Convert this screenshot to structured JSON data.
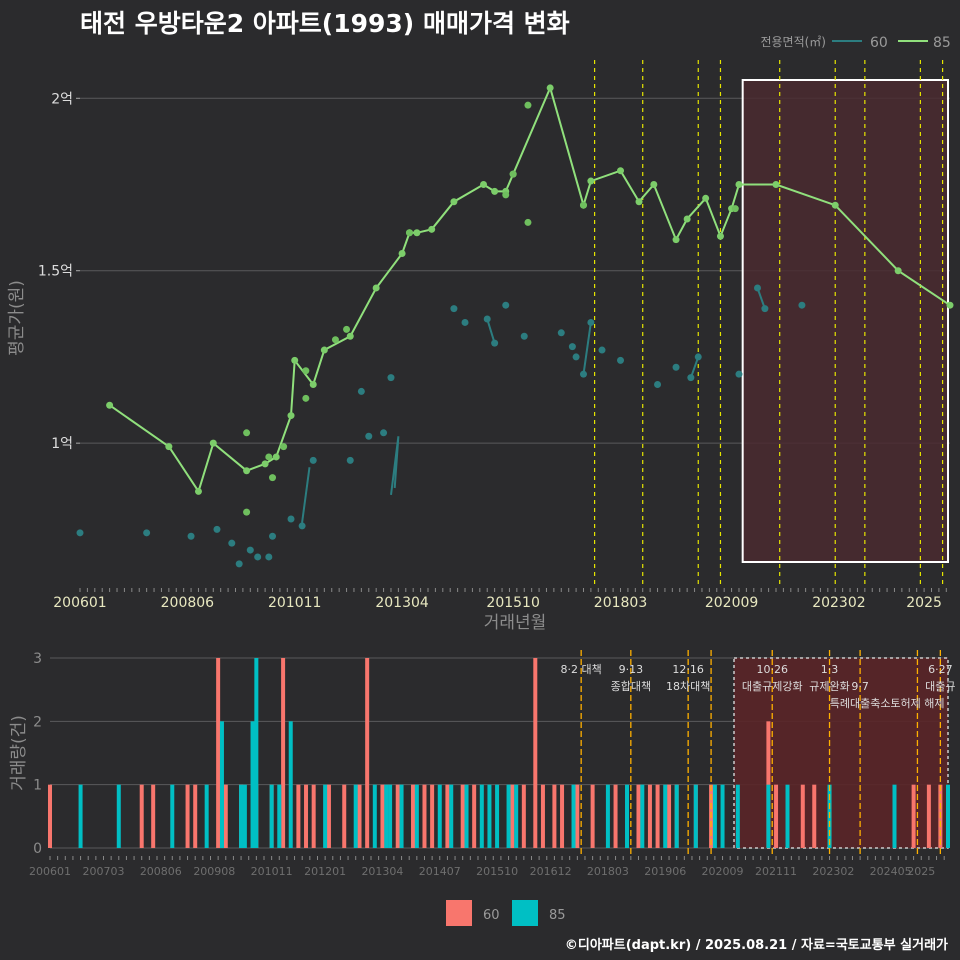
{
  "title": "태전 우방타운2 아파트(1993) 매매가격 변화",
  "credit": "©디아파트(dapt.kr) / 2025.08.21 / 자료=국토교통부 실거래가",
  "colors": {
    "area60_line": "#2c7d80",
    "area85_line": "#90e07c",
    "bar60": "#f8766d",
    "bar85": "#00bfc4",
    "policy": "#e6e600",
    "policy_bar": "#ffb000",
    "highlight_fill": "#4a2a30",
    "highlight_border": "#ffffff"
  },
  "chart_data": [
    {
      "type": "line",
      "title": "태전 우방타운2 아파트(1993) 매매가격 변화",
      "xlabel": "거래년월",
      "ylabel": "평균가(원)",
      "x_ticks": [
        "200601",
        "200806",
        "201011",
        "201304",
        "201510",
        "201803",
        "202009",
        "202302",
        "2025"
      ],
      "y_ticks": [
        "1억",
        "1.5억",
        "2억"
      ],
      "y_unit": "억원",
      "ylim": [
        0.58,
        2.14
      ],
      "xlim": [
        "2006-01",
        "2025-08"
      ],
      "grid": true,
      "legend": {
        "title": "전용면적(㎡)",
        "position": "top-right",
        "entries": [
          "60",
          "85"
        ]
      },
      "highlight_range": [
        "2020-12",
        "2025-08"
      ],
      "policy_dates": [
        "2017-08",
        "2018-09",
        "2019-12",
        "2020-06",
        "2021-10",
        "2023-01",
        "2023-09",
        "2024-12",
        "2025-06"
      ],
      "series": [
        {
          "name": "85",
          "points": [
            [
              "2006-09",
              1.11
            ],
            [
              "2008-01",
              0.99
            ],
            [
              "2008-09",
              0.86
            ],
            [
              "2009-01",
              1.0
            ],
            [
              "2009-10",
              0.92
            ],
            [
              "2010-03",
              0.94
            ],
            [
              "2010-06",
              0.96
            ],
            [
              "2010-10",
              1.08
            ],
            [
              "2010-11",
              1.24
            ],
            [
              "2011-04",
              1.17
            ],
            [
              "2011-07",
              1.27
            ],
            [
              "2012-02",
              1.31
            ],
            [
              "2012-09",
              1.45
            ],
            [
              "2013-04",
              1.55
            ],
            [
              "2013-06",
              1.61
            ],
            [
              "2013-08",
              1.61
            ],
            [
              "2013-12",
              1.62
            ],
            [
              "2014-06",
              1.7
            ],
            [
              "2015-02",
              1.75
            ],
            [
              "2015-05",
              1.73
            ],
            [
              "2015-08",
              1.73
            ],
            [
              "2015-10",
              1.78
            ],
            [
              "2016-08",
              2.03
            ],
            [
              "2017-05",
              1.69
            ],
            [
              "2017-07",
              1.76
            ],
            [
              "2018-03",
              1.79
            ],
            [
              "2018-08",
              1.7
            ],
            [
              "2018-12",
              1.75
            ],
            [
              "2019-06",
              1.59
            ],
            [
              "2019-09",
              1.65
            ],
            [
              "2020-02",
              1.71
            ],
            [
              "2020-06",
              1.6
            ],
            [
              "2020-09",
              1.68
            ],
            [
              "2020-11",
              1.75
            ],
            [
              "2021-09",
              1.75
            ],
            [
              "2023-01",
              1.69
            ],
            [
              "2024-06",
              1.5
            ],
            [
              "2025-08",
              1.4
            ]
          ],
          "extra_points": [
            [
              "2009-10",
              1.03
            ],
            [
              "2009-10",
              0.8
            ],
            [
              "2010-04",
              0.96
            ],
            [
              "2010-05",
              0.9
            ],
            [
              "2010-08",
              0.99
            ],
            [
              "2011-02",
              1.21
            ],
            [
              "2011-02",
              1.13
            ],
            [
              "2011-10",
              1.3
            ],
            [
              "2012-01",
              1.33
            ],
            [
              "2013-06",
              1.61
            ],
            [
              "2015-08",
              1.72
            ],
            [
              "2015-10",
              1.78
            ],
            [
              "2016-02",
              1.98
            ],
            [
              "2016-02",
              1.64
            ],
            [
              "2017-05",
              1.69
            ],
            [
              "2020-10",
              1.68
            ]
          ]
        },
        {
          "name": "60",
          "points": [
            [
              "2006-01",
              0.74
            ],
            [
              "2007-07",
              0.74
            ],
            [
              "2008-07",
              0.73
            ],
            [
              "2009-02",
              0.75
            ],
            [
              "2009-06",
              0.71
            ],
            [
              "2009-08",
              0.65
            ],
            [
              "2009-11",
              0.69
            ],
            [
              "2010-01",
              0.67
            ],
            [
              "2010-04",
              0.67
            ],
            [
              "2010-05",
              0.73
            ],
            [
              "2010-10",
              0.78
            ],
            [
              "2011-01",
              0.76
            ],
            [
              "2011-04",
              0.95
            ],
            [
              "2012-02",
              0.95
            ],
            [
              "2012-05",
              1.15
            ],
            [
              "2012-07",
              1.02
            ],
            [
              "2012-11",
              1.03
            ],
            [
              "2013-01",
              1.19
            ],
            [
              "2014-06",
              1.39
            ],
            [
              "2014-09",
              1.35
            ],
            [
              "2015-03",
              1.36
            ],
            [
              "2015-05",
              1.29
            ],
            [
              "2015-08",
              1.4
            ],
            [
              "2016-01",
              1.31
            ],
            [
              "2016-11",
              1.32
            ],
            [
              "2017-02",
              1.28
            ],
            [
              "2017-03",
              1.25
            ],
            [
              "2017-05",
              1.2
            ],
            [
              "2017-07",
              1.35
            ],
            [
              "2017-10",
              1.27
            ],
            [
              "2018-03",
              1.24
            ],
            [
              "2019-01",
              1.17
            ],
            [
              "2019-06",
              1.22
            ],
            [
              "2019-10",
              1.19
            ],
            [
              "2019-12",
              1.25
            ],
            [
              "2020-11",
              1.2
            ],
            [
              "2021-04",
              1.45
            ],
            [
              "2021-06",
              1.39
            ],
            [
              "2022-04",
              1.4
            ]
          ],
          "segments": [
            [
              [
                "2011-01",
                0.77
              ],
              [
                "2011-03",
                0.93
              ]
            ],
            [
              [
                "2013-01",
                0.85
              ],
              [
                "2013-03",
                1.02
              ],
              [
                "2013-02",
                0.87
              ]
            ],
            [
              [
                "2015-03",
                1.36
              ],
              [
                "2015-05",
                1.29
              ]
            ],
            [
              [
                "2017-05",
                1.2
              ],
              [
                "2017-07",
                1.35
              ]
            ],
            [
              [
                "2019-10",
                1.19
              ],
              [
                "2019-12",
                1.25
              ]
            ],
            [
              [
                "2021-04",
                1.45
              ],
              [
                "2021-06",
                1.39
              ]
            ]
          ]
        }
      ]
    },
    {
      "type": "bar",
      "ylabel": "거래량(건)",
      "y_ticks": [
        "0",
        "1",
        "2",
        "3"
      ],
      "ylim": [
        0,
        3
      ],
      "x_ticks": [
        "200601",
        "200703",
        "200806",
        "200908",
        "201011",
        "201201",
        "201304",
        "201407",
        "201510",
        "201612",
        "201803",
        "201906",
        "202009",
        "202111",
        "202302",
        "202405",
        "2025"
      ],
      "legend": {
        "position": "bottom",
        "entries": [
          "60",
          "85"
        ]
      },
      "series": [
        {
          "name": "60",
          "bars": [
            [
              "2006-01",
              1
            ],
            [
              "2008-01",
              1
            ],
            [
              "2008-04",
              1
            ],
            [
              "2009-01",
              1
            ],
            [
              "2009-03",
              1
            ],
            [
              "2009-09",
              3
            ],
            [
              "2009-11",
              1
            ],
            [
              "2010-03",
              1
            ],
            [
              "2010-07",
              1
            ],
            [
              "2010-11",
              1
            ],
            [
              "2011-02",
              3
            ],
            [
              "2011-06",
              1
            ],
            [
              "2011-08",
              1
            ],
            [
              "2011-10",
              1
            ],
            [
              "2012-02",
              1
            ],
            [
              "2012-06",
              1
            ],
            [
              "2012-10",
              1
            ],
            [
              "2012-12",
              3
            ],
            [
              "2013-04",
              1
            ],
            [
              "2013-08",
              1
            ],
            [
              "2013-12",
              1
            ],
            [
              "2014-03",
              1
            ],
            [
              "2014-05",
              1
            ],
            [
              "2014-09",
              1
            ],
            [
              "2015-01",
              1
            ],
            [
              "2015-04",
              1
            ],
            [
              "2016-02",
              1
            ],
            [
              "2016-05",
              1
            ],
            [
              "2016-08",
              3
            ],
            [
              "2016-10",
              1
            ],
            [
              "2017-01",
              1
            ],
            [
              "2017-03",
              1
            ],
            [
              "2017-07",
              1
            ],
            [
              "2017-11",
              1
            ],
            [
              "2018-05",
              1
            ],
            [
              "2018-11",
              1
            ],
            [
              "2019-02",
              1
            ],
            [
              "2019-04",
              1
            ],
            [
              "2019-07",
              1
            ],
            [
              "2019-09",
              1
            ],
            [
              "2020-02",
              1
            ],
            [
              "2020-06",
              1
            ],
            [
              "2021-09",
              2
            ],
            [
              "2021-11",
              1
            ],
            [
              "2022-06",
              1
            ],
            [
              "2022-09",
              1
            ],
            [
              "2024-11",
              1
            ],
            [
              "2025-03",
              1
            ],
            [
              "2025-06",
              1
            ]
          ]
        },
        {
          "name": "85",
          "bars": [
            [
              "2006-09",
              1
            ],
            [
              "2007-07",
              1
            ],
            [
              "2008-09",
              1
            ],
            [
              "2009-06",
              1
            ],
            [
              "2009-10",
              2
            ],
            [
              "2010-03",
              1
            ],
            [
              "2010-04",
              1
            ],
            [
              "2010-06",
              2
            ],
            [
              "2010-07",
              3
            ],
            [
              "2010-11",
              1
            ],
            [
              "2011-01",
              1
            ],
            [
              "2011-04",
              2
            ],
            [
              "2012-01",
              1
            ],
            [
              "2012-09",
              1
            ],
            [
              "2013-02",
              1
            ],
            [
              "2013-05",
              1
            ],
            [
              "2013-06",
              1
            ],
            [
              "2013-09",
              1
            ],
            [
              "2014-01",
              1
            ],
            [
              "2014-07",
              1
            ],
            [
              "2014-10",
              1
            ],
            [
              "2015-02",
              1
            ],
            [
              "2015-06",
              1
            ],
            [
              "2015-08",
              1
            ],
            [
              "2015-10",
              1
            ],
            [
              "2016-01",
              1
            ],
            [
              "2016-03",
              1
            ],
            [
              "2017-06",
              1
            ],
            [
              "2018-03",
              1
            ],
            [
              "2018-08",
              1
            ],
            [
              "2018-12",
              1
            ],
            [
              "2019-06",
              1
            ],
            [
              "2019-09",
              1
            ],
            [
              "2020-02",
              1
            ],
            [
              "2020-07",
              1
            ],
            [
              "2020-09",
              1
            ],
            [
              "2021-01",
              1
            ],
            [
              "2021-09",
              1
            ],
            [
              "2022-02",
              1
            ],
            [
              "2023-01",
              1
            ],
            [
              "2024-06",
              1
            ],
            [
              "2025-08",
              1
            ]
          ]
        }
      ],
      "annotations": [
        {
          "date": "2017-08",
          "lines": [
            "8·2 대책"
          ]
        },
        {
          "date": "2018-09",
          "lines": [
            "9·13",
            "종합대책"
          ]
        },
        {
          "date": "2019-12",
          "lines": [
            "12·16",
            "18차대책"
          ]
        },
        {
          "date": "2021-10",
          "lines": [
            "10·26",
            "대출규제강화"
          ]
        },
        {
          "date": "2023-01",
          "lines": [
            "1·3",
            "규제완화"
          ]
        },
        {
          "date": "2023-09",
          "lines": [
            "",
            "9·7",
            "특례대출축소"
          ]
        },
        {
          "date": "2024-12",
          "lines": [
            "",
            "",
            "토허제 해제"
          ]
        },
        {
          "date": "2025-06",
          "lines": [
            "6·27",
            "대출규"
          ]
        }
      ]
    }
  ]
}
